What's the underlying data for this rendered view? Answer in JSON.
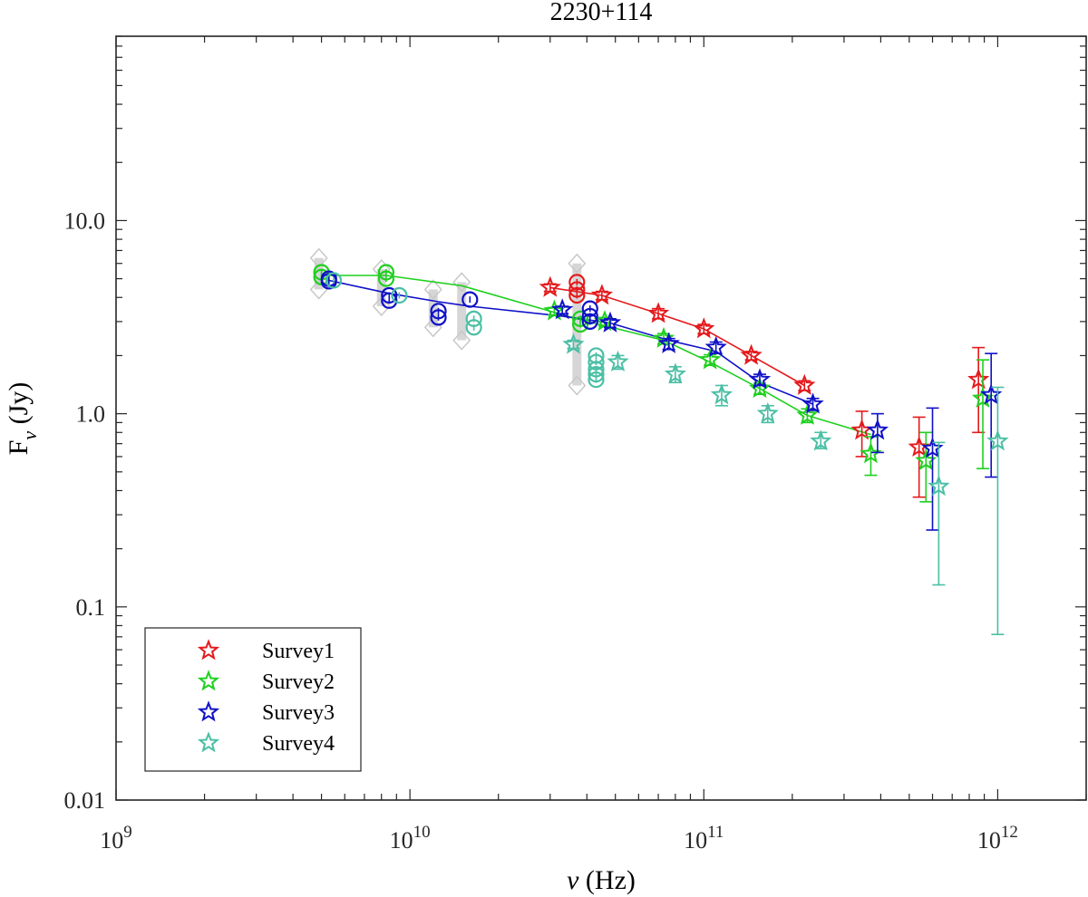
{
  "chart_data": {
    "type": "scatter",
    "title": "2230+114",
    "xlabel_symbol": "ν",
    "xlabel_unit": " (Hz)",
    "ylabel_main": "F",
    "ylabel_sub": "ν",
    "ylabel_unit": " (Jy)",
    "xscale": "log",
    "yscale": "log",
    "xlim": [
      1000000000.0,
      2000000000000.0
    ],
    "ylim": [
      0.01,
      90
    ],
    "x_ticks": [
      {
        "value": 1000000000.0,
        "base": "10",
        "exp": "9"
      },
      {
        "value": 10000000000.0,
        "base": "10",
        "exp": "10"
      },
      {
        "value": 100000000000.0,
        "base": "10",
        "exp": "11"
      },
      {
        "value": 1000000000000.0,
        "base": "10",
        "exp": "12"
      }
    ],
    "y_ticks": [
      {
        "value": 0.01,
        "label": "0.01"
      },
      {
        "value": 0.1,
        "label": "0.1"
      },
      {
        "value": 1,
        "label": "1.0"
      },
      {
        "value": 10,
        "label": "10.0"
      }
    ],
    "legend_position": "bottom-left",
    "colors": {
      "Survey1": "#e41a1c",
      "Survey2": "#1fd01f",
      "Survey3": "#1010c8",
      "Survey4": "#4bbfa5",
      "archive": "#c8c8c8"
    },
    "series": [
      {
        "name": "Survey1",
        "color": "#e41a1c",
        "fit_curve": {
          "x": [
            30000000000.0,
            45000000000.0,
            70000000000.0,
            100000000000.0,
            145000000000.0,
            220000000000.0
          ],
          "y": [
            4.5,
            4.1,
            3.3,
            2.75,
            2.0,
            1.4
          ]
        },
        "stars": [
          {
            "x": 30000000000.0,
            "y": 4.5,
            "lo": 4.3,
            "hi": 4.7
          },
          {
            "x": 45000000000.0,
            "y": 4.1,
            "lo": 3.9,
            "hi": 4.3
          },
          {
            "x": 70000000000.0,
            "y": 3.3,
            "lo": 3.1,
            "hi": 3.5
          },
          {
            "x": 100000000000.0,
            "y": 2.75,
            "lo": 2.6,
            "hi": 2.9
          },
          {
            "x": 145000000000.0,
            "y": 2.0,
            "lo": 1.9,
            "hi": 2.1
          },
          {
            "x": 220000000000.0,
            "y": 1.4,
            "lo": 1.32,
            "hi": 1.48
          },
          {
            "x": 345000000000.0,
            "y": 0.82,
            "lo": 0.6,
            "hi": 1.03
          },
          {
            "x": 540000000000.0,
            "y": 0.67,
            "lo": 0.37,
            "hi": 0.96
          },
          {
            "x": 860000000000.0,
            "y": 1.5,
            "lo": 0.8,
            "hi": 2.2
          }
        ],
        "circles": [
          {
            "x": 37000000000.0,
            "y": 4.8
          },
          {
            "x": 37000000000.0,
            "y": 4.4
          },
          {
            "x": 37000000000.0,
            "y": 4.1
          }
        ]
      },
      {
        "name": "Survey2",
        "color": "#1fd01f",
        "fit_curve": {
          "x": [
            5000000000.0,
            8300000000.0,
            15000000000.0,
            37000000000.0,
            73000000000.0,
            105000000000.0,
            155000000000.0,
            225000000000.0,
            370000000000.0
          ],
          "y": [
            5.2,
            5.2,
            4.6,
            3.1,
            2.4,
            1.85,
            1.35,
            0.98,
            0.78
          ]
        },
        "stars": [
          {
            "x": 31000000000.0,
            "y": 3.4,
            "lo": 3.25,
            "hi": 3.55
          },
          {
            "x": 46000000000.0,
            "y": 3.0,
            "lo": 2.85,
            "hi": 3.15
          },
          {
            "x": 73000000000.0,
            "y": 2.45,
            "lo": 2.3,
            "hi": 2.6
          },
          {
            "x": 105000000000.0,
            "y": 1.9,
            "lo": 1.78,
            "hi": 2.02
          },
          {
            "x": 155000000000.0,
            "y": 1.35,
            "lo": 1.26,
            "hi": 1.44
          },
          {
            "x": 225000000000.0,
            "y": 0.98,
            "lo": 0.9,
            "hi": 1.06
          },
          {
            "x": 370000000000.0,
            "y": 0.62,
            "lo": 0.48,
            "hi": 0.76
          },
          {
            "x": 570000000000.0,
            "y": 0.57,
            "lo": 0.35,
            "hi": 0.8
          },
          {
            "x": 890000000000.0,
            "y": 1.2,
            "lo": 0.52,
            "hi": 1.9
          }
        ],
        "circles": [
          {
            "x": 5000000000.0,
            "y": 5.4
          },
          {
            "x": 5000000000.0,
            "y": 5.1
          },
          {
            "x": 8300000000.0,
            "y": 5.4
          },
          {
            "x": 8300000000.0,
            "y": 5.0
          },
          {
            "x": 38000000000.0,
            "y": 3.1
          },
          {
            "x": 38000000000.0,
            "y": 2.9
          }
        ]
      },
      {
        "name": "Survey3",
        "color": "#1010c8",
        "fit_curve": {
          "x": [
            5300000000.0,
            8500000000.0,
            12500000000.0,
            16000000000.0,
            33000000000.0,
            48000000000.0,
            76000000000.0,
            110000000000.0,
            155000000000.0,
            235000000000.0
          ],
          "y": [
            4.9,
            4.2,
            3.8,
            3.6,
            3.2,
            2.95,
            2.4,
            2.1,
            1.45,
            1.12
          ]
        },
        "stars": [
          {
            "x": 33000000000.0,
            "y": 3.45,
            "lo": 3.3,
            "hi": 3.6
          },
          {
            "x": 48000000000.0,
            "y": 2.95,
            "lo": 2.8,
            "hi": 3.1
          },
          {
            "x": 76000000000.0,
            "y": 2.3,
            "lo": 2.15,
            "hi": 2.45
          },
          {
            "x": 110000000000.0,
            "y": 2.2,
            "lo": 2.05,
            "hi": 2.35
          },
          {
            "x": 155000000000.0,
            "y": 1.5,
            "lo": 1.4,
            "hi": 1.6
          },
          {
            "x": 235000000000.0,
            "y": 1.12,
            "lo": 1.04,
            "hi": 1.2
          },
          {
            "x": 390000000000.0,
            "y": 0.82,
            "lo": 0.63,
            "hi": 1.0
          },
          {
            "x": 600000000000.0,
            "y": 0.66,
            "lo": 0.25,
            "hi": 1.07
          },
          {
            "x": 950000000000.0,
            "y": 1.25,
            "lo": 0.47,
            "hi": 2.05
          }
        ],
        "circles": [
          {
            "x": 5300000000.0,
            "y": 5.0
          },
          {
            "x": 5300000000.0,
            "y": 4.85
          },
          {
            "x": 8500000000.0,
            "y": 4.1
          },
          {
            "x": 8500000000.0,
            "y": 3.85
          },
          {
            "x": 12500000000.0,
            "y": 3.4
          },
          {
            "x": 12500000000.0,
            "y": 3.15
          },
          {
            "x": 16000000000.0,
            "y": 3.9
          },
          {
            "x": 41000000000.0,
            "y": 3.5
          },
          {
            "x": 41000000000.0,
            "y": 3.2
          },
          {
            "x": 41000000000.0,
            "y": 3.0
          }
        ]
      },
      {
        "name": "Survey4",
        "color": "#4bbfa5",
        "stars": [
          {
            "x": 36000000000.0,
            "y": 2.28,
            "lo": 2.18,
            "hi": 2.4
          },
          {
            "x": 51000000000.0,
            "y": 1.85,
            "lo": 1.7,
            "hi": 2.0
          },
          {
            "x": 80000000000.0,
            "y": 1.6,
            "lo": 1.45,
            "hi": 1.75
          },
          {
            "x": 115000000000.0,
            "y": 1.25,
            "lo": 1.1,
            "hi": 1.4
          },
          {
            "x": 165000000000.0,
            "y": 1.0,
            "lo": 0.9,
            "hi": 1.1
          },
          {
            "x": 250000000000.0,
            "y": 0.72,
            "lo": 0.66,
            "hi": 0.8
          },
          {
            "x": 630000000000.0,
            "y": 0.42,
            "lo": 0.13,
            "hi": 0.71
          },
          {
            "x": 1000000000000.0,
            "y": 0.72,
            "lo": 0.072,
            "hi": 1.37
          }
        ],
        "circles": [
          {
            "x": 5500000000.0,
            "y": 4.9
          },
          {
            "x": 9200000000.0,
            "y": 4.1
          },
          {
            "x": 16500000000.0,
            "y": 3.1
          },
          {
            "x": 16500000000.0,
            "y": 2.8
          },
          {
            "x": 43000000000.0,
            "y": 2.0
          },
          {
            "x": 43000000000.0,
            "y": 1.85
          },
          {
            "x": 43000000000.0,
            "y": 1.7
          },
          {
            "x": 43000000000.0,
            "y": 1.6
          },
          {
            "x": 43000000000.0,
            "y": 1.5
          }
        ]
      }
    ],
    "archive_bands": [
      {
        "x": 4900000000.0,
        "lo": 4.4,
        "hi": 6.4
      },
      {
        "x": 8000000000.0,
        "lo": 3.6,
        "hi": 5.6
      },
      {
        "x": 12000000000.0,
        "lo": 2.8,
        "hi": 4.4
      },
      {
        "x": 15000000000.0,
        "lo": 2.4,
        "hi": 4.8
      },
      {
        "x": 37000000000.0,
        "lo": 1.4,
        "hi": 6.0
      }
    ]
  }
}
